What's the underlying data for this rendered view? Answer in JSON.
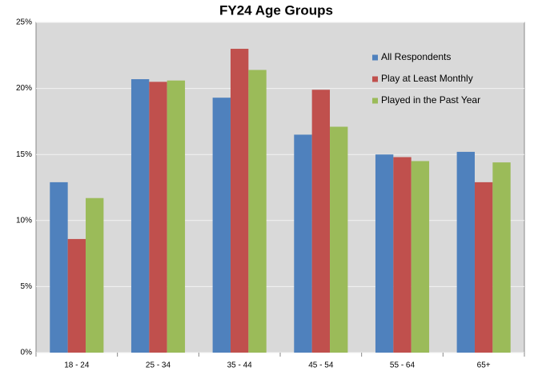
{
  "chart_data": {
    "type": "bar",
    "title": "FY24 Age Groups",
    "categories": [
      "18 - 24",
      "25 - 34",
      "35 - 44",
      "45 - 54",
      "55 - 64",
      "65+"
    ],
    "series": [
      {
        "name": "All Respondents",
        "color": "#4f81bd",
        "values": [
          12.9,
          20.7,
          19.3,
          16.5,
          15.0,
          15.2
        ]
      },
      {
        "name": "Play at Least Monthly",
        "color": "#c0504d",
        "values": [
          8.6,
          20.5,
          23.0,
          19.9,
          14.8,
          12.9
        ]
      },
      {
        "name": "Played in the Past Year",
        "color": "#9bbb59",
        "values": [
          11.7,
          20.6,
          21.4,
          17.1,
          14.5,
          14.4
        ]
      }
    ],
    "ylim": [
      0,
      25
    ],
    "yticks": [
      {
        "value": 0,
        "label": "0%"
      },
      {
        "value": 5,
        "label": "5%"
      },
      {
        "value": 10,
        "label": "10%"
      },
      {
        "value": 15,
        "label": "15%"
      },
      {
        "value": 20,
        "label": "20%"
      },
      {
        "value": 25,
        "label": "25%"
      }
    ],
    "grid": true,
    "legend": "top-right"
  }
}
